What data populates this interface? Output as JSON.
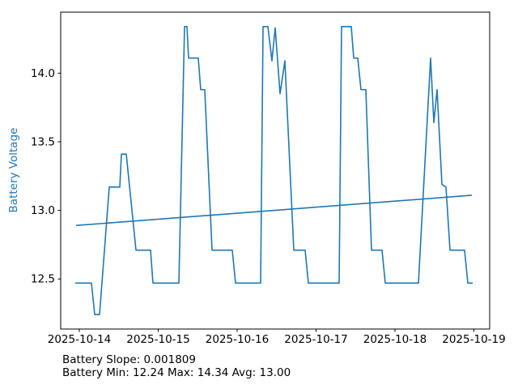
{
  "figure": {
    "background": "#ffffff",
    "axis_color": "#000000",
    "accent_color": "#1f77b4"
  },
  "chart_data": {
    "type": "line",
    "title": "",
    "xlabel": "",
    "ylabel": "Battery Voltage",
    "ylabel_color": "#1f77b4",
    "grid": false,
    "legend": "none",
    "x_unit": "hours since 2025-10-14 00:00",
    "x_tick_labels": [
      "2025-10-14",
      "2025-10-15",
      "2025-10-16",
      "2025-10-17",
      "2025-10-18",
      "2025-10-19"
    ],
    "x_tick_hours": [
      0,
      24,
      48,
      72,
      96,
      120
    ],
    "y_ticks": [
      "12.5",
      "13.0",
      "13.5",
      "14.0"
    ],
    "y_tick_values": [
      12.5,
      13.0,
      13.5,
      14.0
    ],
    "xlim_hours": [
      -5.66,
      124.8
    ],
    "ylim": [
      12.135,
      14.445
    ],
    "series": [
      {
        "name": "battery_voltage",
        "color": "#1f77b4",
        "points": [
          [
            -1.23,
            12.47
          ],
          [
            3.69,
            12.47
          ],
          [
            4.68,
            12.24
          ],
          [
            6.15,
            12.24
          ],
          [
            9.11,
            13.17
          ],
          [
            12.31,
            13.17
          ],
          [
            12.8,
            13.41
          ],
          [
            14.28,
            13.41
          ],
          [
            17.23,
            12.71
          ],
          [
            21.66,
            12.71
          ],
          [
            22.4,
            12.47
          ],
          [
            30.28,
            12.47
          ],
          [
            32.0,
            14.34
          ],
          [
            32.74,
            14.34
          ],
          [
            33.23,
            14.11
          ],
          [
            36.18,
            14.11
          ],
          [
            36.92,
            13.88
          ],
          [
            38.15,
            13.88
          ],
          [
            40.37,
            12.71
          ],
          [
            46.52,
            12.71
          ],
          [
            47.51,
            12.47
          ],
          [
            55.14,
            12.47
          ],
          [
            55.88,
            14.34
          ],
          [
            57.35,
            14.34
          ],
          [
            58.58,
            14.09
          ],
          [
            59.57,
            14.33
          ],
          [
            61.05,
            13.85
          ],
          [
            62.52,
            14.09
          ],
          [
            65.23,
            12.71
          ],
          [
            68.68,
            12.71
          ],
          [
            69.66,
            12.47
          ],
          [
            79.02,
            12.47
          ],
          [
            79.75,
            14.34
          ],
          [
            82.71,
            14.34
          ],
          [
            83.45,
            14.11
          ],
          [
            84.68,
            14.11
          ],
          [
            85.66,
            13.88
          ],
          [
            87.14,
            13.88
          ],
          [
            88.86,
            12.71
          ],
          [
            92.06,
            12.71
          ],
          [
            93.05,
            12.47
          ],
          [
            103.14,
            12.47
          ],
          [
            106.83,
            14.11
          ],
          [
            107.82,
            13.64
          ],
          [
            108.8,
            13.88
          ],
          [
            110.28,
            13.19
          ],
          [
            111.51,
            13.17
          ],
          [
            112.74,
            12.71
          ],
          [
            117.17,
            12.71
          ],
          [
            118.15,
            12.47
          ],
          [
            119.63,
            12.47
          ]
        ]
      },
      {
        "name": "trend_line",
        "color": "#1f77b4",
        "points": [
          [
            -0.98,
            12.89
          ],
          [
            119.38,
            13.11
          ]
        ]
      }
    ],
    "annotations": [
      "Battery Slope: 0.001809",
      "Battery Min: 12.24 Max: 14.34 Avg: 13.00"
    ],
    "stats": {
      "slope": "0.001809",
      "min": "12.24",
      "max": "14.34",
      "avg": "13.00"
    }
  }
}
